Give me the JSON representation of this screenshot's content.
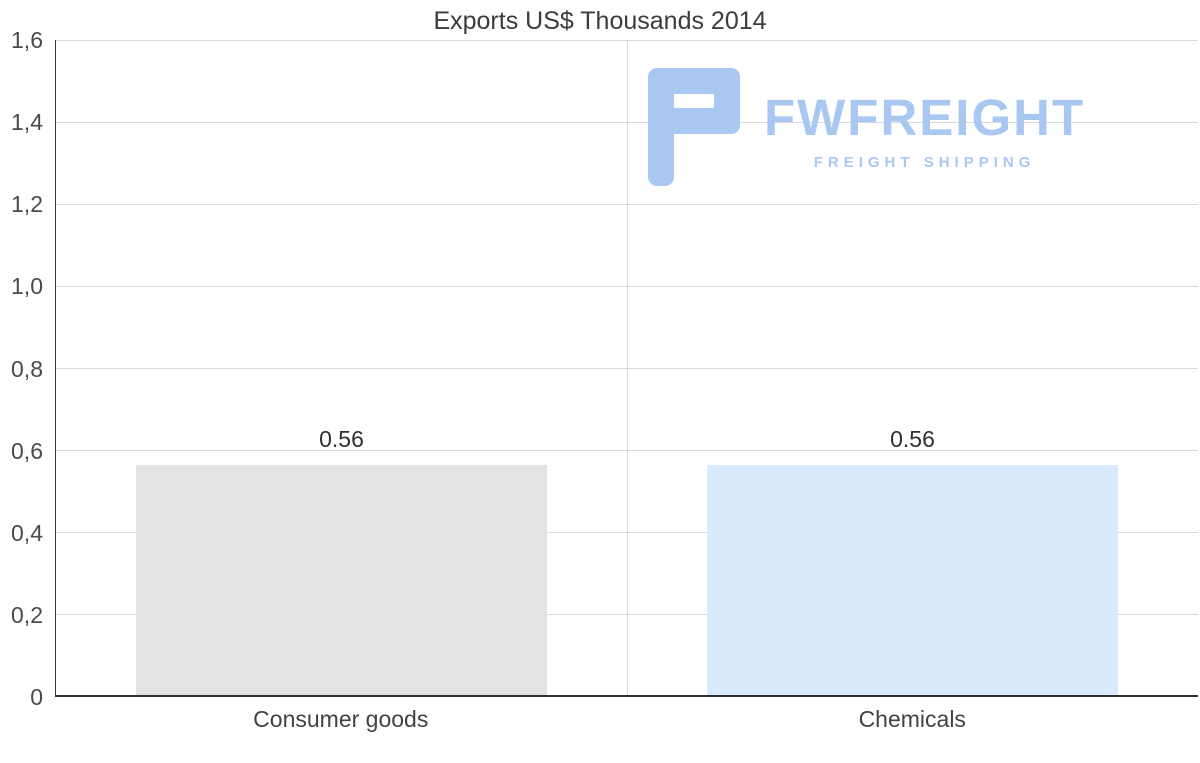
{
  "watermark": {
    "brand": "FWFREIGHT",
    "tagline": "FREIGHT SHIPPING",
    "color": "#a9c8f1"
  },
  "chart_data": {
    "type": "bar",
    "title": "Exports US$ Thousands 2014",
    "categories": [
      "Consumer goods",
      "Chemicals"
    ],
    "values": [
      0.56,
      0.56
    ],
    "data_labels": [
      "0.56",
      "0.56"
    ],
    "bar_colors": [
      "#e3e3e3",
      "#d8eafc"
    ],
    "ylim": [
      0,
      1.6
    ],
    "ytick_step": 0.2,
    "ytick_labels": [
      "0",
      "0,2",
      "0,4",
      "0,6",
      "0,8",
      "1,0",
      "1,2",
      "1,4",
      "1,6"
    ],
    "grid": true,
    "legend": "none",
    "xlabel": "",
    "ylabel": ""
  }
}
